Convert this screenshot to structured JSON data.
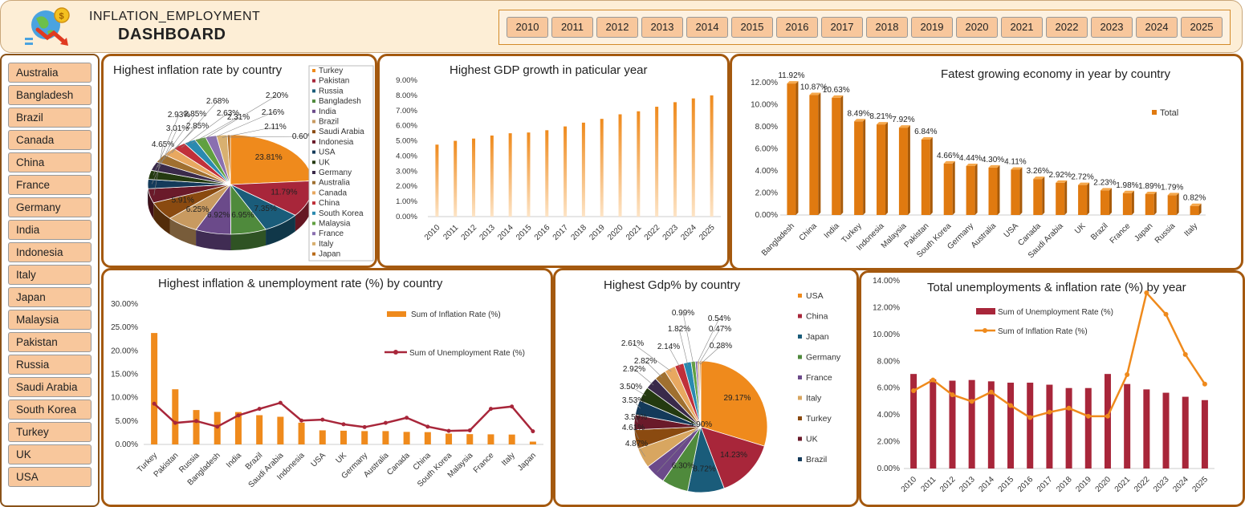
{
  "header": {
    "title_line1": "INFLATION_EMPLOYMENT",
    "title_line2": "DASHBOARD",
    "years": [
      "2010",
      "2011",
      "2012",
      "2013",
      "2014",
      "2015",
      "2016",
      "2017",
      "2018",
      "2019",
      "2020",
      "2021",
      "2022",
      "2023",
      "2024",
      "2025"
    ]
  },
  "countries": [
    "Australia",
    "Bangladesh",
    "Brazil",
    "Canada",
    "China",
    "France",
    "Germany",
    "India",
    "Indonesia",
    "Italy",
    "Japan",
    "Malaysia",
    "Pakistan",
    "Russia",
    "Saudi Arabia",
    "South Korea",
    "Turkey",
    "UK",
    "USA"
  ],
  "colors": {
    "orange": "#ef8a1c",
    "crimson": "#a8263a",
    "panel_border": "#a4590f",
    "button": "#f8c79c"
  },
  "chart_data": [
    {
      "id": "inflation_pie",
      "type": "pie",
      "title": "Highest inflation rate by country",
      "labels": [
        "Turkey",
        "Pakistan",
        "Russia",
        "Bangladesh",
        "India",
        "Brazil",
        "Saudi Arabia",
        "Indonesia",
        "USA",
        "UK",
        "Germany",
        "Australia",
        "Canada",
        "China",
        "South Korea",
        "Malaysia",
        "France",
        "Italy",
        "Japan"
      ],
      "values": [
        23.81,
        11.79,
        7.35,
        6.95,
        6.92,
        6.25,
        5.91,
        4.65,
        3.01,
        2.93,
        2.85,
        2.85,
        2.68,
        2.63,
        2.31,
        2.2,
        2.16,
        2.11,
        0.6
      ],
      "value_labels": [
        "23.81%",
        "11.79%",
        "7.35%",
        "6.95%",
        "6.92%",
        "6.25%",
        "5.91%",
        "4.65%",
        "3.01%",
        "2.93%",
        "2.85%",
        "2.85%",
        "2.68%",
        "2.63%",
        "2.31%",
        "2.20%",
        "2.16%",
        "2.11%",
        "0.60%"
      ],
      "colors": [
        "#ef8a1c",
        "#a8263a",
        "#1a5c7a",
        "#4f8a3c",
        "#6b4a8a",
        "#c89a60",
        "#8a4a10",
        "#6a1a2a",
        "#143a5a",
        "#243a10",
        "#3a2a4a",
        "#a07030",
        "#e8a860",
        "#c0303a",
        "#2a8ab0",
        "#60a040",
        "#8a70b0",
        "#d8b070",
        "#b86a18"
      ]
    },
    {
      "id": "gdp_growth_year",
      "type": "bar",
      "title": "Highest GDP growth in paticular year",
      "categories": [
        "2010",
        "2011",
        "2012",
        "2013",
        "2014",
        "2015",
        "2016",
        "2017",
        "2018",
        "2019",
        "2020",
        "2021",
        "2022",
        "2023",
        "2024",
        "2025"
      ],
      "values": [
        4.75,
        5.0,
        5.15,
        5.35,
        5.5,
        5.55,
        5.7,
        5.95,
        6.2,
        6.45,
        6.75,
        6.95,
        7.25,
        7.55,
        7.8,
        8.0
      ],
      "ylim": [
        0,
        9
      ],
      "yticks": [
        "0.00%",
        "1.00%",
        "2.00%",
        "3.00%",
        "4.00%",
        "5.00%",
        "6.00%",
        "7.00%",
        "8.00%",
        "9.00%"
      ]
    },
    {
      "id": "fastest_growing",
      "type": "bar",
      "title": "Fatest growing economy in year by country",
      "legend": [
        "Total"
      ],
      "categories": [
        "Bangladesh",
        "China",
        "India",
        "Turkey",
        "Indonesia",
        "Malaysia",
        "Pakistan",
        "South Korea",
        "Germany",
        "Australia",
        "USA",
        "Canada",
        "Saudi Arabia",
        "UK",
        "Brazil",
        "France",
        "Japan",
        "Russia",
        "Italy"
      ],
      "values": [
        11.92,
        10.87,
        10.63,
        8.49,
        8.21,
        7.92,
        6.84,
        4.66,
        4.44,
        4.3,
        4.11,
        3.26,
        2.92,
        2.72,
        2.23,
        1.98,
        1.89,
        1.79,
        0.82
      ],
      "value_labels": [
        "11.92%",
        "10.87%",
        "10.63%",
        "8.49%",
        "8.21%",
        "7.92%",
        "6.84%",
        "4.66%",
        "4.44%",
        "4.30%",
        "4.11%",
        "3.26%",
        "2.92%",
        "2.72%",
        "2.23%",
        "1.98%",
        "1.89%",
        "1.79%",
        "0.82%"
      ],
      "ylim": [
        0,
        12
      ],
      "yticks": [
        "0.00%",
        "2.00%",
        "4.00%",
        "6.00%",
        "8.00%",
        "10.00%",
        "12.00%"
      ]
    },
    {
      "id": "inflation_unemployment_country",
      "type": "bar",
      "title": "Highest  inflation & unemployment  rate (%) by country",
      "categories": [
        "Turkey",
        "Pakistan",
        "Russia",
        "Bangladesh",
        "India",
        "Brazil",
        "Saudi Arabia",
        "Indonesia",
        "USA",
        "UK",
        "Germany",
        "Australia",
        "Canada",
        "China",
        "South Korea",
        "Malaysia",
        "France",
        "Italy",
        "Japan"
      ],
      "series": [
        {
          "name": "Sum of Inflation Rate (%)",
          "kind": "bar",
          "values": [
            23.81,
            11.79,
            7.35,
            6.95,
            6.92,
            6.25,
            5.91,
            4.65,
            3.01,
            2.93,
            2.85,
            2.85,
            2.68,
            2.63,
            2.31,
            2.2,
            2.16,
            2.11,
            0.6
          ]
        },
        {
          "name": "Sum of Unemployment Rate (%)",
          "kind": "line",
          "values": [
            8.7,
            4.6,
            5.0,
            3.8,
            6.2,
            7.6,
            8.9,
            5.1,
            5.3,
            4.3,
            3.7,
            4.6,
            5.7,
            3.8,
            2.9,
            3.0,
            7.6,
            8.1,
            2.8
          ]
        }
      ],
      "ylim": [
        0,
        30
      ],
      "yticks": [
        "0.00%",
        "5.00%",
        "10.00%",
        "15.00%",
        "20.00%",
        "25.00%",
        "30.00%"
      ]
    },
    {
      "id": "gdp_pie",
      "type": "pie",
      "title": "Highest  Gdp% by country",
      "legend": [
        "USA",
        "China",
        "Japan",
        "Germany",
        "France",
        "Italy",
        "Turkey",
        "UK",
        "Brazil"
      ],
      "values": [
        29.17,
        14.23,
        8.72,
        6.3,
        4.9,
        4.87,
        4.61,
        3.59,
        3.53,
        3.5,
        2.92,
        2.82,
        2.61,
        2.14,
        1.82,
        0.99,
        0.54,
        0.47,
        0.28
      ],
      "value_labels": [
        "29.17%",
        "14.23%",
        "8.72%",
        "6.30%",
        "4.90%",
        "4.87%",
        "4.61%",
        "3.59%",
        "3.53%",
        "3.50%",
        "2.92%",
        "2.82%",
        "2.61%",
        "2.14%",
        "1.82%",
        "0.99%",
        "0.54%",
        "0.47%",
        "0.28%"
      ],
      "colors": [
        "#ef8a1c",
        "#a8263a",
        "#1a5c7a",
        "#4f8a3c",
        "#6b4a8a",
        "#d8a660",
        "#8a4a10",
        "#6a1a2a",
        "#143a5a",
        "#243a10",
        "#3a2a4a",
        "#a07030",
        "#e8a860",
        "#c0303a",
        "#2a8ab0",
        "#60a040",
        "#8a70b0",
        "#d8b070",
        "#b86a18"
      ]
    },
    {
      "id": "unemployment_inflation_year",
      "type": "bar",
      "title": "Total unemployments & inflation rate (%) by year",
      "categories": [
        "2010",
        "2011",
        "2012",
        "2013",
        "2014",
        "2015",
        "2016",
        "2017",
        "2018",
        "2019",
        "2020",
        "2021",
        "2022",
        "2023",
        "2024",
        "2025"
      ],
      "series": [
        {
          "name": "Sum of Unemployment Rate (%)",
          "kind": "bar",
          "values": [
            7.05,
            6.65,
            6.55,
            6.6,
            6.5,
            6.4,
            6.4,
            6.25,
            6.0,
            6.0,
            7.05,
            6.3,
            5.9,
            5.65,
            5.35,
            5.1
          ]
        },
        {
          "name": "Sum of Inflation Rate (%)",
          "kind": "line",
          "values": [
            5.8,
            6.6,
            5.5,
            5.0,
            5.7,
            4.7,
            3.8,
            4.2,
            4.5,
            3.9,
            3.9,
            7.0,
            13.1,
            11.5,
            8.5,
            6.3
          ]
        }
      ],
      "ylim": [
        0,
        14
      ],
      "yticks": [
        "0.00%",
        "2.00%",
        "4.00%",
        "6.00%",
        "8.00%",
        "10.00%",
        "12.00%",
        "14.00%"
      ]
    }
  ]
}
